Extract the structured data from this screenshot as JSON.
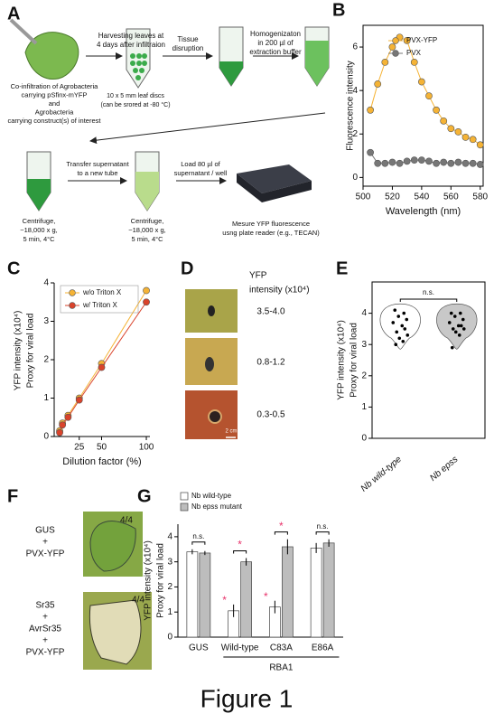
{
  "figure_title": "Figure 1",
  "panel_a": {
    "panel": "A",
    "coinfiltration": [
      "Co-infiltration of Agrobacteria",
      "carrying pSfinx-mYFP",
      "and",
      "Agrobacteria",
      "carrying construct(s) of interest"
    ],
    "harvest": [
      "Harvesting leaves at",
      "4 days after infiltraion"
    ],
    "discs": [
      "10 x 5 mm leaf discs",
      "(can be srored at -80 °C)"
    ],
    "disruption": [
      "Tissue",
      "disruption"
    ],
    "homogenization": [
      "Homogenizaton",
      "in 200 µl of",
      "extraction buffer"
    ],
    "centrifuge_1": [
      "Centrifuge,",
      "~18,000 x g,",
      "5 min, 4°C"
    ],
    "transfer": [
      "Transfer supernatant",
      "to a new tube"
    ],
    "centrifuge_2": [
      "Centrifuge,",
      "~18,000 x g,",
      "5 min, 4°C"
    ],
    "load": [
      "Load 80 µl of",
      "supernatant / well"
    ],
    "measure": [
      "Mesure YFP fluorescence",
      "usng plate reader (e.g., TECAN)"
    ]
  },
  "panel_d": {
    "panel": "D",
    "header": [
      "YFP",
      "intensity (x10⁴)"
    ],
    "ranges": [
      "3.5-4.0",
      "0.8-1.2",
      "0.3-0.5"
    ],
    "scale_bar": "2 cm"
  },
  "panel_f": {
    "panel": "F",
    "top": [
      "GUS",
      "+",
      "PVX-YFP"
    ],
    "top_score": "4/4",
    "bottom": [
      "Sr35",
      "+",
      "AvrSr35",
      "+",
      "PVX-YFP"
    ],
    "bottom_score": "4/4"
  },
  "chart_data": [
    {
      "type": "line",
      "panel": "B",
      "xlabel": "Wavelength (nm)",
      "ylabel": "Fluorescence intensity",
      "x": [
        505,
        510,
        515,
        520,
        525,
        530,
        535,
        540,
        545,
        550,
        555,
        560,
        565,
        570,
        575,
        580
      ],
      "series": [
        {
          "name": "PVX-YFP",
          "color": "#f5b335",
          "values": [
            3.1,
            4.3,
            5.3,
            6.0,
            6.45,
            6.3,
            5.3,
            4.4,
            3.75,
            3.1,
            2.6,
            2.25,
            2.1,
            1.85,
            1.75,
            1.5
          ]
        },
        {
          "name": "PVX",
          "color": "#777777",
          "values": [
            1.15,
            0.65,
            0.65,
            0.7,
            0.65,
            0.75,
            0.8,
            0.8,
            0.75,
            0.65,
            0.7,
            0.65,
            0.7,
            0.65,
            0.65,
            0.6
          ]
        }
      ],
      "xlim": [
        500,
        582
      ],
      "xticks": [
        500,
        520,
        540,
        560,
        580
      ],
      "ylim": [
        -0.4,
        7
      ],
      "yticks": [
        0,
        2,
        4,
        6
      ]
    },
    {
      "type": "line",
      "panel": "C",
      "xlabel": "Dilution factor (%)",
      "ylabel": [
        "YFP  intensity (x10⁴)",
        "Proxy for viral load"
      ],
      "x": [
        3.125,
        6.25,
        12.5,
        25,
        50,
        100
      ],
      "series": [
        {
          "name": "w/o Triton X",
          "color": "#f5b335",
          "values": [
            0.15,
            0.35,
            0.55,
            1.0,
            1.9,
            3.8
          ]
        },
        {
          "name": "w/  Triton X",
          "color": "#d9432b",
          "values": [
            0.1,
            0.3,
            0.5,
            0.95,
            1.8,
            3.5
          ]
        }
      ],
      "xlim": [
        -3,
        104
      ],
      "xticks": [
        25,
        50,
        100
      ],
      "ylim": [
        0,
        4
      ],
      "yticks": [
        0,
        1,
        2,
        3,
        4
      ]
    },
    {
      "type": "violin",
      "panel": "E",
      "ylabel": [
        "YFP  intensity (x10⁴)",
        "Proxy for viral load"
      ],
      "categories": [
        "Nb wild-type",
        "Nb epss"
      ],
      "colors": [
        "#ffffff",
        "#c8c8c8"
      ],
      "values": [
        [
          4.1,
          4.0,
          3.9,
          3.8,
          3.7,
          3.6,
          3.5,
          3.4,
          3.3,
          3.2,
          3.1,
          3.0
        ],
        [
          4.0,
          4.0,
          3.9,
          3.8,
          3.7,
          3.6,
          3.6,
          3.5,
          3.5,
          3.4,
          3.3,
          2.9
        ]
      ],
      "annotation": "n.s.",
      "ylim": [
        0,
        5
      ],
      "yticks": [
        0,
        1,
        2,
        3,
        4
      ]
    },
    {
      "type": "bar",
      "panel": "G",
      "ylabel": [
        "YFP  intensity (x10⁴)",
        "Proxy for viral load"
      ],
      "categories": [
        "GUS",
        "Wild-type",
        "C83A",
        "E86A"
      ],
      "group_label": "RBA1",
      "series": [
        {
          "name": "Nb wild-type",
          "color": "#ffffff",
          "values": [
            3.4,
            1.05,
            1.2,
            3.55
          ],
          "errors": [
            0.1,
            0.25,
            0.25,
            0.2
          ],
          "stars": [
            null,
            "*",
            "*",
            null
          ]
        },
        {
          "name": "Nb epss mutant",
          "color": "#bdbdbd",
          "values": [
            3.35,
            3.0,
            3.6,
            3.75
          ],
          "errors": [
            0.08,
            0.15,
            0.3,
            0.15
          ]
        }
      ],
      "significance": [
        "n.s.",
        "*",
        "*",
        "n.s."
      ],
      "star_color": "#e8336b",
      "ylim": [
        0,
        4.5
      ],
      "yticks": [
        0,
        1,
        2,
        3,
        4
      ]
    }
  ]
}
